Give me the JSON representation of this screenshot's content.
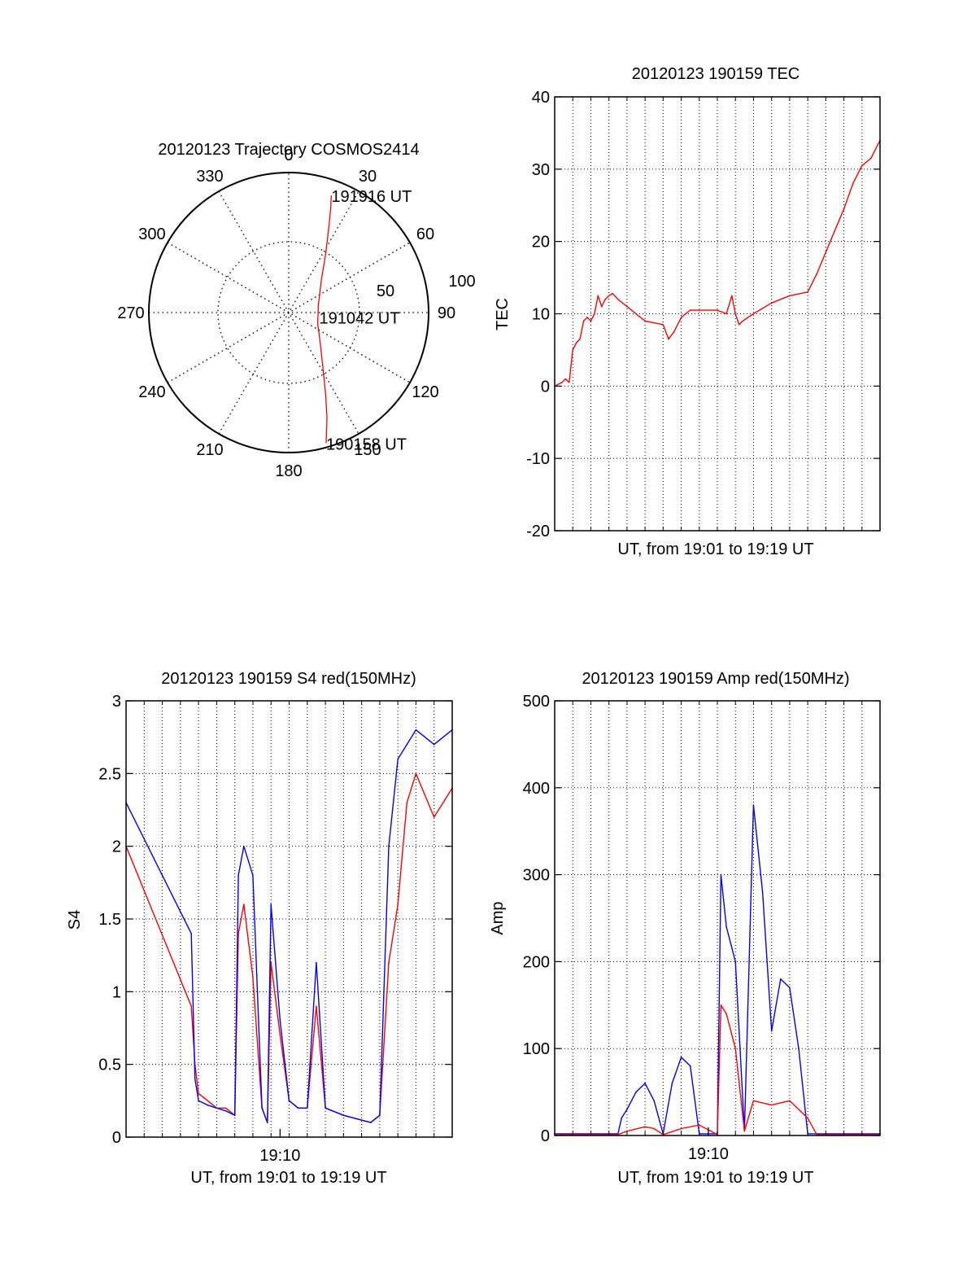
{
  "colors": {
    "red": "#ff0000",
    "blue": "#0000ff",
    "axis": "#000000",
    "grid": "#000000"
  },
  "chart_data": [
    {
      "id": "trajectory",
      "type": "polar",
      "title": "20120123 Trajectory COSMOS2414",
      "azimuth_labels": [
        "0",
        "30",
        "60",
        "90",
        "120",
        "150",
        "180",
        "210",
        "240",
        "270",
        "300",
        "330"
      ],
      "ring_labels": [
        "50",
        "100"
      ],
      "rlim": [
        0,
        100
      ],
      "grid": true,
      "track": {
        "color": "red",
        "points": [
          {
            "az": 164,
            "r": 97
          },
          {
            "az": 160,
            "r": 80
          },
          {
            "az": 155,
            "r": 62
          },
          {
            "az": 148,
            "r": 46
          },
          {
            "az": 135,
            "r": 32
          },
          {
            "az": 110,
            "r": 22
          },
          {
            "az": 75,
            "r": 22
          },
          {
            "az": 45,
            "r": 33
          },
          {
            "az": 32,
            "r": 50
          },
          {
            "az": 25,
            "r": 68
          },
          {
            "az": 22,
            "r": 80
          },
          {
            "az": 20,
            "r": 89
          }
        ]
      },
      "annotations": [
        {
          "text": "191916 UT",
          "az": 20,
          "r": 89
        },
        {
          "text": "191042 UT",
          "az": 98,
          "r": 22
        },
        {
          "text": "190158 UT",
          "az": 164,
          "r": 97
        }
      ]
    },
    {
      "id": "tec",
      "type": "line",
      "title": "20120123 190159 TEC",
      "xlabel": "UT, from 19:01 to 19:19 UT",
      "ylabel": "TEC",
      "ylim": [
        -20,
        40
      ],
      "yticks": [
        -20,
        -10,
        0,
        10,
        20,
        30,
        40
      ],
      "xlim": [
        0,
        18
      ],
      "xtick_labels": [],
      "grid": true,
      "series": [
        {
          "color": "red",
          "x": [
            0.0,
            0.4,
            0.6,
            0.8,
            1.0,
            1.2,
            1.4,
            1.6,
            1.8,
            2.0,
            2.2,
            2.4,
            2.6,
            2.8,
            3.0,
            3.2,
            3.5,
            4.0,
            5.0,
            6.0,
            6.3,
            6.6,
            7.0,
            7.5,
            8.0,
            9.0,
            9.5,
            9.8,
            10.0,
            10.2,
            10.4,
            11.0,
            12.0,
            13.0,
            14.0,
            14.5,
            15.0,
            15.5,
            16.0,
            16.5,
            17.0,
            17.5,
            18.0
          ],
          "values": [
            0.0,
            0.5,
            1.0,
            0.5,
            5.0,
            6.0,
            6.5,
            9.0,
            9.5,
            9.0,
            10.0,
            12.5,
            11.0,
            12.0,
            12.5,
            12.8,
            12.0,
            11.0,
            9.0,
            8.5,
            6.5,
            7.5,
            9.5,
            10.5,
            10.5,
            10.5,
            10.0,
            12.5,
            10.0,
            8.5,
            9.0,
            10.0,
            11.5,
            12.5,
            13.0,
            15.5,
            18.5,
            21.5,
            24.5,
            28.0,
            30.5,
            31.5,
            34.0
          ]
        }
      ]
    },
    {
      "id": "s4",
      "type": "line",
      "title": "20120123 190159 S4 red(150MHz)",
      "xlabel": "UT, from 19:01 to 19:19 UT",
      "ylabel": "S4",
      "ylim": [
        0,
        3
      ],
      "yticks": [
        "0",
        "0.5",
        "1",
        "1.5",
        "2",
        "2.5",
        "3"
      ],
      "xlim": [
        0,
        18
      ],
      "xtick_labels": [
        {
          "x": 8.5,
          "label": "19:10"
        }
      ],
      "grid": true,
      "series": [
        {
          "color": "red",
          "x": [
            0.0,
            3.6,
            3.8,
            4.0,
            4.5,
            5.0,
            5.5,
            6.0,
            6.2,
            6.5,
            7.0,
            7.5,
            7.8,
            8.0,
            8.5,
            9.0,
            9.5,
            10.0,
            10.5,
            11.0,
            12.0,
            13.5,
            14.0,
            14.5,
            15.0,
            15.5,
            16.0,
            17.0,
            18.0
          ],
          "values": [
            2.0,
            0.9,
            0.5,
            0.3,
            0.25,
            0.2,
            0.2,
            0.15,
            1.4,
            1.6,
            1.1,
            0.2,
            0.1,
            1.2,
            0.7,
            0.25,
            0.2,
            0.2,
            0.9,
            0.2,
            0.15,
            0.1,
            0.15,
            1.2,
            1.6,
            2.3,
            2.5,
            2.2,
            2.4
          ]
        },
        {
          "color": "blue",
          "x": [
            0.0,
            3.6,
            3.8,
            4.0,
            4.5,
            5.0,
            5.5,
            6.0,
            6.2,
            6.5,
            7.0,
            7.5,
            7.8,
            8.0,
            8.5,
            9.0,
            9.5,
            10.0,
            10.5,
            11.0,
            12.0,
            13.5,
            14.0,
            14.5,
            15.0,
            15.5,
            16.0,
            17.0,
            18.0
          ],
          "values": [
            2.3,
            1.4,
            0.4,
            0.25,
            0.22,
            0.2,
            0.18,
            0.15,
            1.8,
            2.0,
            1.8,
            0.2,
            0.1,
            1.6,
            0.8,
            0.25,
            0.2,
            0.2,
            1.2,
            0.2,
            0.15,
            0.1,
            0.15,
            2.0,
            2.6,
            2.7,
            2.8,
            2.7,
            2.8
          ]
        }
      ]
    },
    {
      "id": "amp",
      "type": "line",
      "title": "20120123 190159 Amp red(150MHz)",
      "xlabel": "UT, from 19:01 to 19:19 UT",
      "ylabel": "Amp",
      "ylim": [
        0,
        500
      ],
      "yticks": [
        0,
        100,
        200,
        300,
        400,
        500
      ],
      "xlim": [
        0,
        18
      ],
      "xtick_labels": [
        {
          "x": 8.5,
          "label": "19:10"
        }
      ],
      "grid": true,
      "series": [
        {
          "color": "blue",
          "x": [
            0.0,
            3.5,
            3.7,
            4.0,
            4.5,
            5.0,
            5.5,
            6.0,
            6.5,
            7.0,
            7.5,
            8.0,
            8.5,
            9.0,
            9.2,
            9.5,
            10.0,
            10.5,
            11.0,
            11.5,
            12.0,
            12.5,
            13.0,
            13.5,
            14.0,
            14.5,
            15.0,
            18.0
          ],
          "values": [
            2,
            2,
            20,
            30,
            50,
            60,
            40,
            2,
            60,
            90,
            80,
            2,
            2,
            2,
            300,
            240,
            200,
            5,
            380,
            280,
            120,
            180,
            170,
            100,
            2,
            2,
            2,
            2
          ]
        },
        {
          "color": "red",
          "x": [
            0.0,
            3.5,
            4.0,
            5.0,
            5.5,
            6.0,
            7.0,
            8.0,
            9.0,
            9.2,
            9.5,
            10.0,
            10.5,
            11.0,
            12.0,
            13.0,
            14.0,
            14.5,
            18.0
          ],
          "values": [
            1,
            1,
            5,
            10,
            8,
            1,
            8,
            12,
            1,
            150,
            140,
            100,
            5,
            40,
            35,
            40,
            20,
            1,
            1
          ]
        }
      ]
    }
  ]
}
